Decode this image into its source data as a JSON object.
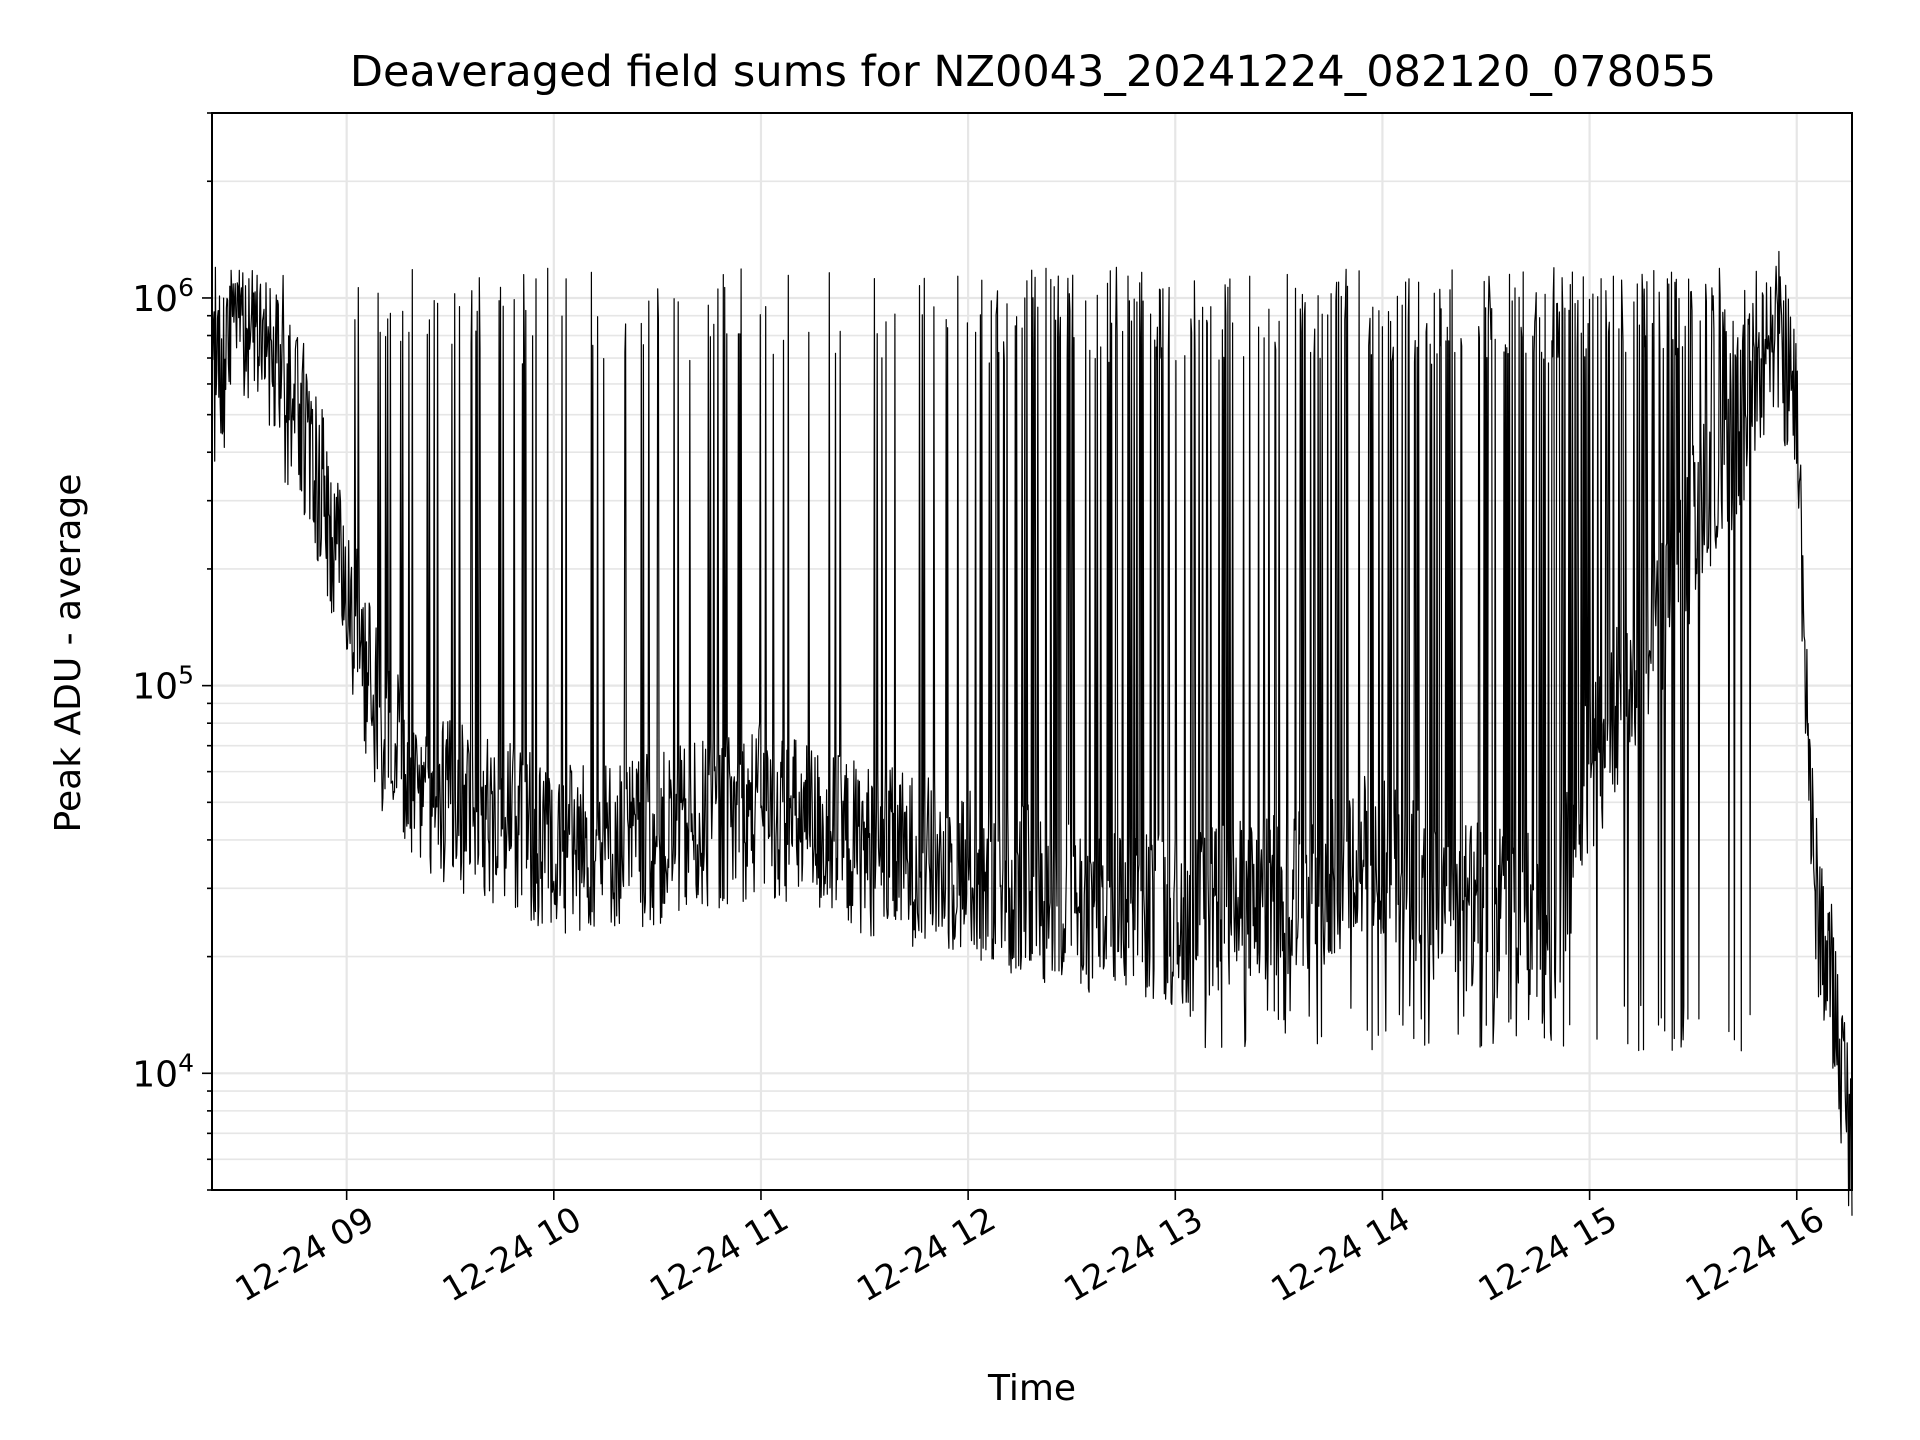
{
  "chart_data": {
    "type": "line",
    "title": "Deaveraged field sums for NZ0043_20241224_082120_078055",
    "xlabel": "Time",
    "ylabel": "Peak ADU - average",
    "yscale": "log",
    "ylim": [
      5000,
      3000000
    ],
    "xlim": [
      "2024-12-24 08:21",
      "2024-12-24 16:16"
    ],
    "x_ticks": [
      "12-24 09",
      "12-24 10",
      "12-24 11",
      "12-24 12",
      "12-24 13",
      "12-24 14",
      "12-24 15",
      "12-24 16"
    ],
    "y_ticks": [
      {
        "value": 10000,
        "base": "10",
        "exp": "4"
      },
      {
        "value": 100000,
        "base": "10",
        "exp": "5"
      },
      {
        "value": 1000000,
        "base": "10",
        "exp": "6"
      }
    ],
    "grid": true,
    "line_color": "#000000",
    "series": [
      {
        "x": [
          "2024-12-24 08:21",
          "2024-12-24 08:30",
          "2024-12-24 08:40",
          "2024-12-24 08:50",
          "2024-12-24 09:00",
          "2024-12-24 09:10",
          "2024-12-24 09:20",
          "2024-12-24 09:40",
          "2024-12-24 10:00",
          "2024-12-24 10:30",
          "2024-12-24 11:00",
          "2024-12-24 11:30",
          "2024-12-24 12:00",
          "2024-12-24 12:30",
          "2024-12-24 13:00",
          "2024-12-24 13:30",
          "2024-12-24 14:00",
          "2024-12-24 14:10",
          "2024-12-24 14:30",
          "2024-12-24 14:50",
          "2024-12-24 15:00",
          "2024-12-24 15:15",
          "2024-12-24 15:30",
          "2024-12-24 15:45",
          "2024-12-24 15:55",
          "2024-12-24 16:00",
          "2024-12-24 16:05",
          "2024-12-24 16:10",
          "2024-12-24 16:16"
        ],
        "y": [
          550000,
          900000,
          600000,
          400000,
          180000,
          75000,
          55000,
          45000,
          38000,
          40000,
          48000,
          38000,
          33000,
          27000,
          25000,
          28000,
          38000,
          30000,
          26000,
          25000,
          60000,
          120000,
          250000,
          500000,
          800000,
          500000,
          30000,
          17000,
          6500
        ],
        "spike_peak_y": 1200000,
        "spike_floor_y": 15000
      }
    ]
  }
}
